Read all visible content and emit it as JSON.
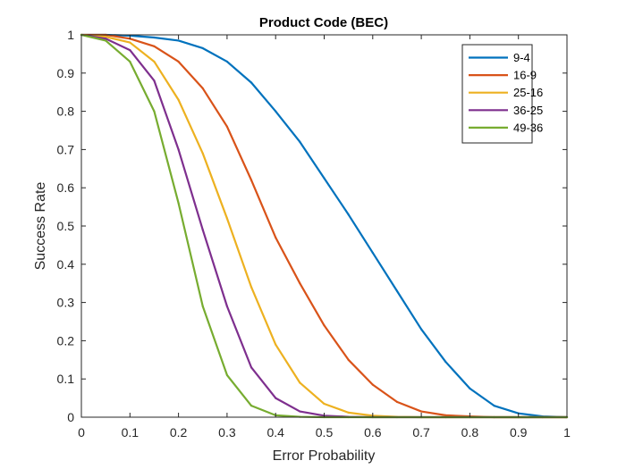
{
  "chart_data": {
    "type": "line",
    "title": "Product Code (BEC)",
    "xlabel": "Error Probability",
    "ylabel": "Success Rate",
    "xlim": [
      0,
      1
    ],
    "ylim": [
      0,
      1
    ],
    "xticks": [
      "0",
      "0.1",
      "0.2",
      "0.3",
      "0.4",
      "0.5",
      "0.6",
      "0.7",
      "0.8",
      "0.9",
      "1"
    ],
    "yticks": [
      "0",
      "0.1",
      "0.2",
      "0.3",
      "0.4",
      "0.5",
      "0.6",
      "0.7",
      "0.8",
      "0.9",
      "1"
    ],
    "grid": false,
    "legend_position": "top-right",
    "x": [
      0,
      0.05,
      0.1,
      0.15,
      0.2,
      0.25,
      0.3,
      0.35,
      0.4,
      0.45,
      0.5,
      0.55,
      0.6,
      0.65,
      0.7,
      0.75,
      0.8,
      0.85,
      0.9,
      0.95,
      1.0
    ],
    "series": [
      {
        "name": "9-4",
        "color": "#0072BD",
        "values": [
          1.0,
          1.0,
          0.998,
          0.993,
          0.985,
          0.965,
          0.93,
          0.875,
          0.8,
          0.72,
          0.625,
          0.53,
          0.43,
          0.33,
          0.23,
          0.145,
          0.075,
          0.03,
          0.01,
          0.002,
          0.0
        ]
      },
      {
        "name": "16-9",
        "color": "#D95319",
        "values": [
          1.0,
          1.0,
          0.99,
          0.97,
          0.93,
          0.86,
          0.76,
          0.62,
          0.47,
          0.35,
          0.24,
          0.15,
          0.085,
          0.04,
          0.015,
          0.005,
          0.002,
          0.0,
          0.0,
          0.0,
          0.0
        ]
      },
      {
        "name": "25-16",
        "color": "#EDB120",
        "values": [
          1.0,
          0.995,
          0.98,
          0.93,
          0.83,
          0.69,
          0.52,
          0.34,
          0.19,
          0.09,
          0.035,
          0.012,
          0.004,
          0.001,
          0.0,
          0.0,
          0.0,
          0.0,
          0.0,
          0.0,
          0.0
        ]
      },
      {
        "name": "36-25",
        "color": "#7E2F8E",
        "values": [
          1.0,
          0.99,
          0.96,
          0.88,
          0.7,
          0.49,
          0.29,
          0.13,
          0.05,
          0.015,
          0.004,
          0.001,
          0.0,
          0.0,
          0.0,
          0.0,
          0.0,
          0.0,
          0.0,
          0.0,
          0.0
        ]
      },
      {
        "name": "49-36",
        "color": "#77AC30",
        "values": [
          1.0,
          0.985,
          0.93,
          0.8,
          0.56,
          0.29,
          0.11,
          0.03,
          0.005,
          0.001,
          0.0,
          0.0,
          0.0,
          0.0,
          0.0,
          0.0,
          0.0,
          0.0,
          0.0,
          0.0,
          0.0
        ]
      }
    ]
  }
}
